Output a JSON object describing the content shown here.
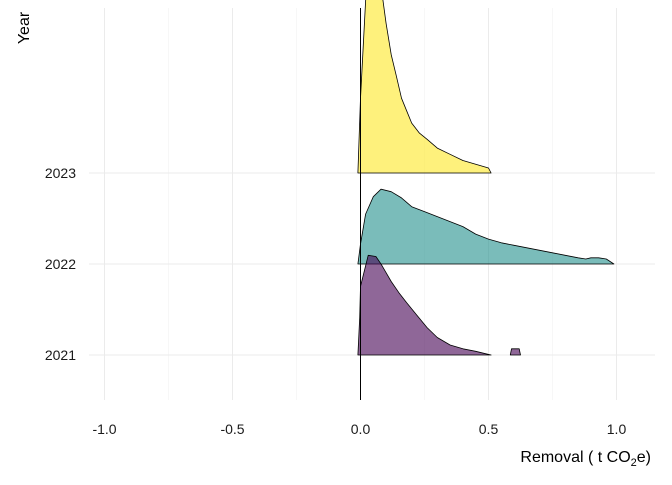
{
  "chart_data": {
    "type": "area",
    "subtype": "ridgeline-density",
    "xlabel": {
      "prefix": "Removal ( t CO",
      "subscript": "2",
      "suffix": "e)"
    },
    "ylabel": "Year",
    "xlim": [
      -1.1,
      1.15
    ],
    "x_ticks": [
      -1.0,
      -0.5,
      0.0,
      0.5,
      1.0
    ],
    "x_tick_labels": [
      "-1.0",
      "-0.5",
      "0.0",
      "0.5",
      "1.0"
    ],
    "categories": [
      "2021",
      "2022",
      "2023"
    ],
    "reference_line_x": 0.0,
    "grid": true,
    "legend": "none",
    "series": [
      {
        "name": "2021",
        "color": "#440154",
        "curves": [
          {
            "x": [
              -0.01,
              -0.003,
              0.0,
              0.03,
              0.06,
              0.08,
              0.1,
              0.12,
              0.15,
              0.18,
              0.22,
              0.26,
              0.3,
              0.35,
              0.4,
              0.45,
              0.49,
              0.51
            ],
            "density": [
              0.0,
              0.3,
              0.55,
              0.8,
              0.79,
              0.73,
              0.66,
              0.59,
              0.5,
              0.42,
              0.32,
              0.22,
              0.14,
              0.08,
              0.05,
              0.03,
              0.01,
              0.0
            ]
          },
          {
            "x": [
              0.585,
              0.59,
              0.62,
              0.625
            ],
            "density": [
              0.0,
              0.05,
              0.05,
              0.0
            ]
          }
        ]
      },
      {
        "name": "2022",
        "color": "#21908C",
        "curves": [
          {
            "x": [
              -0.01,
              0.0,
              0.02,
              0.05,
              0.08,
              0.12,
              0.16,
              0.2,
              0.25,
              0.3,
              0.35,
              0.4,
              0.45,
              0.5,
              0.55,
              0.6,
              0.65,
              0.7,
              0.75,
              0.8,
              0.85,
              0.88,
              0.9,
              0.93,
              0.96,
              0.99
            ],
            "density": [
              0.0,
              0.16,
              0.4,
              0.54,
              0.6,
              0.58,
              0.53,
              0.46,
              0.42,
              0.38,
              0.34,
              0.3,
              0.24,
              0.2,
              0.17,
              0.15,
              0.13,
              0.11,
              0.09,
              0.07,
              0.05,
              0.04,
              0.05,
              0.05,
              0.04,
              0.0
            ]
          }
        ]
      },
      {
        "name": "2023",
        "color": "#FDE725",
        "curves": [
          {
            "x": [
              -0.01,
              -0.005,
              0.0,
              0.02,
              0.04,
              0.06,
              0.08,
              0.1,
              0.12,
              0.14,
              0.16,
              0.18,
              0.2,
              0.23,
              0.26,
              0.3,
              0.35,
              0.4,
              0.45,
              0.5,
              0.51
            ],
            "density": [
              0.0,
              0.3,
              0.6,
              1.38,
              1.8,
              1.78,
              1.5,
              1.2,
              0.95,
              0.78,
              0.6,
              0.5,
              0.4,
              0.32,
              0.27,
              0.2,
              0.15,
              0.1,
              0.07,
              0.04,
              0.0
            ]
          }
        ]
      }
    ]
  }
}
